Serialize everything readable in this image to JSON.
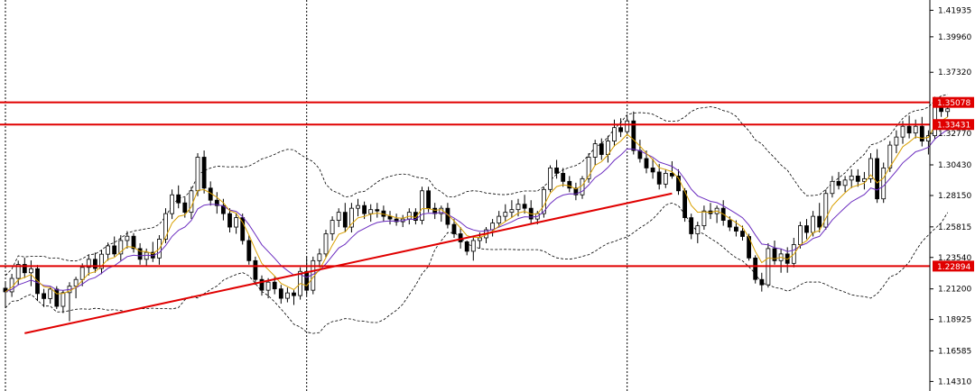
{
  "chart_data": {
    "type": "candlestick",
    "y_axis": {
      "ticks": [
        1.41935,
        1.3996,
        1.3732,
        1.35078,
        1.33431,
        1.3277,
        1.3043,
        1.2815,
        1.25815,
        1.2354,
        1.22894,
        1.212,
        1.18925,
        1.16585,
        1.1431
      ],
      "tick_labels": [
        "1.41935",
        "1.39960",
        "1.37320",
        "1.35078",
        "1.33431",
        "1.32770",
        "1.30430",
        "1.28150",
        "1.25815",
        "1.23540",
        "1.22894",
        "1.21200",
        "1.18925",
        "1.16585",
        "1.14310"
      ],
      "range": [
        1.136,
        1.427
      ]
    },
    "horizontal_levels": [
      {
        "value": 1.35078,
        "label": "1.35078",
        "color": "#e00000"
      },
      {
        "value": 1.33431,
        "label": "1.33431",
        "color": "#e00000"
      },
      {
        "value": 1.22894,
        "label": "1.22894",
        "color": "#e00000"
      }
    ],
    "trendlines": [
      {
        "from": [
          3,
          1.179
        ],
        "to": [
          104,
          1.283
        ],
        "color": "#e00000"
      }
    ],
    "vertical_separators": [
      0,
      47,
      97
    ],
    "grid": false,
    "colors": {
      "bull": "#ffffff",
      "bear": "#000000",
      "fast_ma": "#d9a000",
      "slow_ma": "#6a2bbf",
      "bands": "#000000",
      "level_tag": "#e00000"
    },
    "candles": [
      [
        1.2125,
        1.2178,
        1.199,
        1.2098
      ],
      [
        1.2098,
        1.2232,
        1.206,
        1.2198
      ],
      [
        1.2198,
        1.233,
        1.215,
        1.2302
      ],
      [
        1.2302,
        1.2352,
        1.22,
        1.224
      ],
      [
        1.224,
        1.2332,
        1.214,
        1.227
      ],
      [
        1.227,
        1.2298,
        1.203,
        1.2085
      ],
      [
        1.2085,
        1.212,
        1.1985,
        1.2048
      ],
      [
        1.2048,
        1.2135,
        1.201,
        1.2118
      ],
      [
        1.2118,
        1.214,
        1.197,
        1.199
      ],
      [
        1.199,
        1.211,
        1.194,
        1.2092
      ],
      [
        1.2092,
        1.217,
        1.188,
        1.214
      ],
      [
        1.214,
        1.221,
        1.205,
        1.219
      ],
      [
        1.219,
        1.231,
        1.214,
        1.228
      ],
      [
        1.228,
        1.237,
        1.222,
        1.234
      ],
      [
        1.234,
        1.239,
        1.224,
        1.2272
      ],
      [
        1.2272,
        1.241,
        1.223,
        1.2378
      ],
      [
        1.2378,
        1.2465,
        1.233,
        1.244
      ],
      [
        1.244,
        1.251,
        1.236,
        1.238
      ],
      [
        1.238,
        1.252,
        1.233,
        1.248
      ],
      [
        1.248,
        1.255,
        1.242,
        1.2512
      ],
      [
        1.2512,
        1.2535,
        1.239,
        1.242
      ],
      [
        1.242,
        1.246,
        1.23,
        1.234
      ],
      [
        1.234,
        1.242,
        1.229,
        1.2392
      ],
      [
        1.2392,
        1.247,
        1.232,
        1.235
      ],
      [
        1.235,
        1.252,
        1.23,
        1.249
      ],
      [
        1.249,
        1.272,
        1.246,
        1.268
      ],
      [
        1.268,
        1.286,
        1.264,
        1.282
      ],
      [
        1.282,
        1.289,
        1.272,
        1.276
      ],
      [
        1.276,
        1.28,
        1.265,
        1.269
      ],
      [
        1.269,
        1.288,
        1.264,
        1.285
      ],
      [
        1.285,
        1.313,
        1.281,
        1.31
      ],
      [
        1.31,
        1.315,
        1.283,
        1.287
      ],
      [
        1.287,
        1.292,
        1.274,
        1.278
      ],
      [
        1.278,
        1.284,
        1.268,
        1.274
      ],
      [
        1.274,
        1.279,
        1.263,
        1.268
      ],
      [
        1.268,
        1.272,
        1.254,
        1.258
      ],
      [
        1.258,
        1.268,
        1.253,
        1.265
      ],
      [
        1.265,
        1.268,
        1.245,
        1.248
      ],
      [
        1.248,
        1.252,
        1.23,
        1.233
      ],
      [
        1.233,
        1.236,
        1.215,
        1.219
      ],
      [
        1.219,
        1.222,
        1.207,
        1.211
      ],
      [
        1.211,
        1.22,
        1.205,
        1.217
      ],
      [
        1.217,
        1.221,
        1.208,
        1.212
      ],
      [
        1.212,
        1.215,
        1.201,
        1.205
      ],
      [
        1.205,
        1.213,
        1.202,
        1.209
      ],
      [
        1.209,
        1.211,
        1.2,
        1.207
      ],
      [
        1.207,
        1.228,
        1.204,
        1.225
      ],
      [
        1.225,
        1.236,
        1.207,
        1.211
      ],
      [
        1.211,
        1.236,
        1.208,
        1.233
      ],
      [
        1.233,
        1.242,
        1.228,
        1.238
      ],
      [
        1.238,
        1.256,
        1.235,
        1.253
      ],
      [
        1.253,
        1.266,
        1.248,
        1.263
      ],
      [
        1.263,
        1.272,
        1.258,
        1.269
      ],
      [
        1.269,
        1.276,
        1.254,
        1.258
      ],
      [
        1.258,
        1.276,
        1.254,
        1.272
      ],
      [
        1.272,
        1.279,
        1.266,
        1.274
      ],
      [
        1.274,
        1.277,
        1.264,
        1.268
      ],
      [
        1.268,
        1.275,
        1.262,
        1.271
      ],
      [
        1.271,
        1.276,
        1.265,
        1.27
      ],
      [
        1.27,
        1.274,
        1.262,
        1.266
      ],
      [
        1.266,
        1.27,
        1.26,
        1.264
      ],
      [
        1.264,
        1.268,
        1.259,
        1.262
      ],
      [
        1.262,
        1.267,
        1.258,
        1.264
      ],
      [
        1.264,
        1.272,
        1.26,
        1.269
      ],
      [
        1.269,
        1.272,
        1.26,
        1.263
      ],
      [
        1.263,
        1.288,
        1.26,
        1.285
      ],
      [
        1.285,
        1.288,
        1.269,
        1.272
      ],
      [
        1.272,
        1.276,
        1.264,
        1.268
      ],
      [
        1.268,
        1.274,
        1.262,
        1.272
      ],
      [
        1.272,
        1.276,
        1.257,
        1.26
      ],
      [
        1.26,
        1.264,
        1.25,
        1.253
      ],
      [
        1.253,
        1.258,
        1.242,
        1.247
      ],
      [
        1.247,
        1.248,
        1.237,
        1.24
      ],
      [
        1.24,
        1.251,
        1.233,
        1.248
      ],
      [
        1.248,
        1.254,
        1.242,
        1.25
      ],
      [
        1.25,
        1.258,
        1.246,
        1.256
      ],
      [
        1.256,
        1.264,
        1.251,
        1.261
      ],
      [
        1.261,
        1.27,
        1.258,
        1.266
      ],
      [
        1.266,
        1.275,
        1.262,
        1.269
      ],
      [
        1.269,
        1.278,
        1.265,
        1.271
      ],
      [
        1.271,
        1.279,
        1.266,
        1.275
      ],
      [
        1.275,
        1.282,
        1.268,
        1.272
      ],
      [
        1.272,
        1.278,
        1.26,
        1.264
      ],
      [
        1.264,
        1.27,
        1.26,
        1.268
      ],
      [
        1.268,
        1.288,
        1.265,
        1.286
      ],
      [
        1.286,
        1.304,
        1.284,
        1.302
      ],
      [
        1.302,
        1.308,
        1.294,
        1.298
      ],
      [
        1.298,
        1.302,
        1.288,
        1.292
      ],
      [
        1.292,
        1.296,
        1.284,
        1.287
      ],
      [
        1.287,
        1.291,
        1.278,
        1.282
      ],
      [
        1.282,
        1.296,
        1.279,
        1.294
      ],
      [
        1.294,
        1.313,
        1.291,
        1.31
      ],
      [
        1.31,
        1.323,
        1.304,
        1.32
      ],
      [
        1.32,
        1.324,
        1.308,
        1.312
      ],
      [
        1.312,
        1.326,
        1.306,
        1.322
      ],
      [
        1.322,
        1.338,
        1.318,
        1.332
      ],
      [
        1.332,
        1.339,
        1.325,
        1.329
      ],
      [
        1.329,
        1.34,
        1.326,
        1.337
      ],
      [
        1.337,
        1.344,
        1.312,
        1.315
      ],
      [
        1.315,
        1.323,
        1.306,
        1.309
      ],
      [
        1.309,
        1.315,
        1.298,
        1.302
      ],
      [
        1.302,
        1.309,
        1.294,
        1.299
      ],
      [
        1.299,
        1.305,
        1.286,
        1.29
      ],
      [
        1.29,
        1.301,
        1.287,
        1.298
      ],
      [
        1.298,
        1.307,
        1.294,
        1.296
      ],
      [
        1.296,
        1.301,
        1.282,
        1.285
      ],
      [
        1.285,
        1.287,
        1.262,
        1.265
      ],
      [
        1.265,
        1.268,
        1.249,
        1.253
      ],
      [
        1.253,
        1.262,
        1.246,
        1.259
      ],
      [
        1.259,
        1.274,
        1.256,
        1.27
      ],
      [
        1.27,
        1.276,
        1.264,
        1.268
      ],
      [
        1.268,
        1.274,
        1.261,
        1.272
      ],
      [
        1.272,
        1.278,
        1.259,
        1.263
      ],
      [
        1.263,
        1.266,
        1.255,
        1.258
      ],
      [
        1.258,
        1.263,
        1.251,
        1.255
      ],
      [
        1.255,
        1.259,
        1.248,
        1.251
      ],
      [
        1.251,
        1.253,
        1.233,
        1.235
      ],
      [
        1.235,
        1.237,
        1.216,
        1.219
      ],
      [
        1.219,
        1.224,
        1.21,
        1.215
      ],
      [
        1.215,
        1.246,
        1.213,
        1.242
      ],
      [
        1.242,
        1.248,
        1.23,
        1.233
      ],
      [
        1.233,
        1.242,
        1.224,
        1.238
      ],
      [
        1.238,
        1.243,
        1.224,
        1.231
      ],
      [
        1.231,
        1.25,
        1.228,
        1.245
      ],
      [
        1.245,
        1.262,
        1.242,
        1.259
      ],
      [
        1.259,
        1.264,
        1.249,
        1.254
      ],
      [
        1.254,
        1.27,
        1.251,
        1.266
      ],
      [
        1.266,
        1.276,
        1.254,
        1.258
      ],
      [
        1.258,
        1.286,
        1.256,
        1.283
      ],
      [
        1.283,
        1.296,
        1.28,
        1.292
      ],
      [
        1.292,
        1.299,
        1.286,
        1.289
      ],
      [
        1.289,
        1.296,
        1.284,
        1.293
      ],
      [
        1.293,
        1.301,
        1.287,
        1.296
      ],
      [
        1.296,
        1.301,
        1.288,
        1.292
      ],
      [
        1.292,
        1.299,
        1.286,
        1.294
      ],
      [
        1.294,
        1.313,
        1.291,
        1.309
      ],
      [
        1.309,
        1.316,
        1.276,
        1.279
      ],
      [
        1.279,
        1.306,
        1.276,
        1.302
      ],
      [
        1.302,
        1.322,
        1.299,
        1.319
      ],
      [
        1.319,
        1.33,
        1.313,
        1.325
      ],
      [
        1.325,
        1.337,
        1.32,
        1.333
      ],
      [
        1.333,
        1.341,
        1.324,
        1.328
      ],
      [
        1.328,
        1.338,
        1.324,
        1.333
      ],
      [
        1.333,
        1.34,
        1.318,
        1.322
      ],
      [
        1.322,
        1.33,
        1.312,
        1.326
      ],
      [
        1.326,
        1.355,
        1.323,
        1.351
      ],
      [
        1.351,
        1.354,
        1.34,
        1.344
      ],
      [
        1.344,
        1.349,
        1.34,
        1.346
      ]
    ]
  }
}
